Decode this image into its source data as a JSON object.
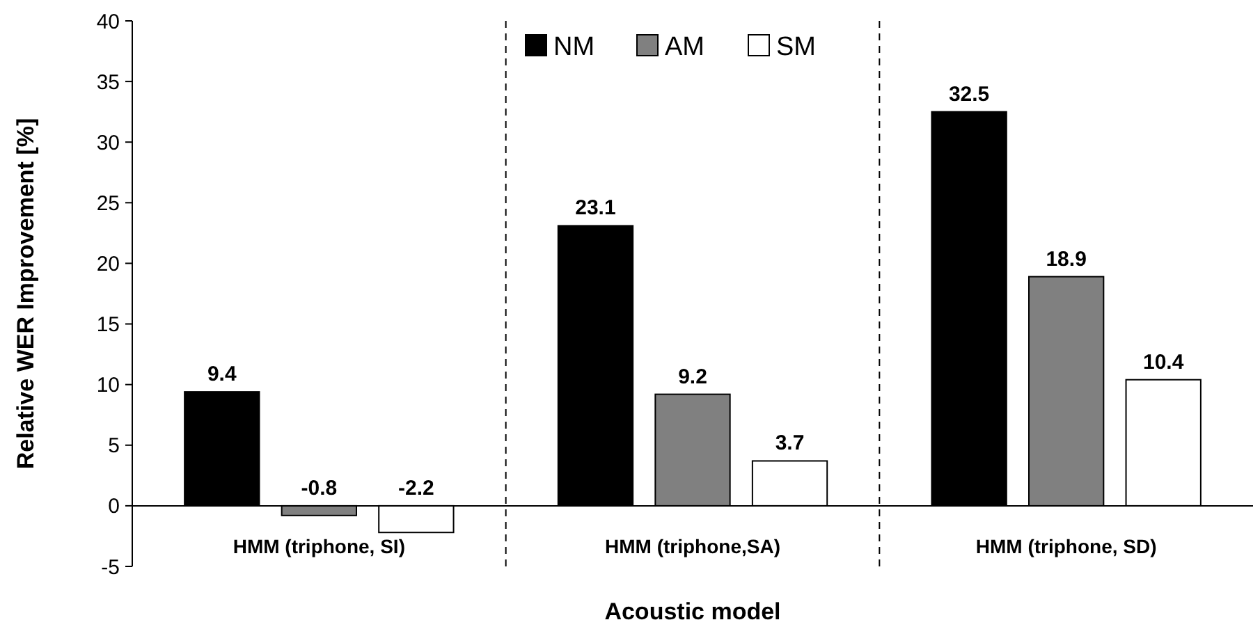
{
  "chart_data": {
    "type": "bar",
    "xlabel": "Acoustic model",
    "ylabel": "Relative WER Improvement [%]",
    "categories": [
      "HMM (triphone, SI)",
      "HMM (triphone,SA)",
      "HMM (triphone, SD)"
    ],
    "series": [
      {
        "name": "NM",
        "color": "#000000",
        "values": [
          9.4,
          23.1,
          32.5
        ]
      },
      {
        "name": "AM",
        "color": "#808080",
        "values": [
          -0.8,
          9.2,
          18.9
        ]
      },
      {
        "name": "SM",
        "color": "#ffffff",
        "values": [
          -2.2,
          3.7,
          10.4
        ]
      }
    ],
    "ylim": [
      -5,
      40
    ],
    "yticks": [
      -5,
      0,
      5,
      10,
      15,
      20,
      25,
      30,
      35,
      40
    ],
    "grid": false,
    "legend": "top",
    "data_labels": true
  }
}
